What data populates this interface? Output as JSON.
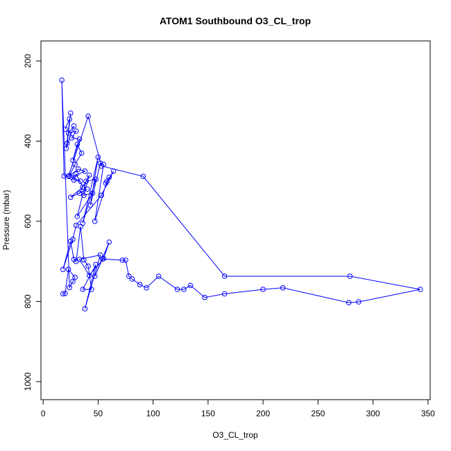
{
  "chart_data": {
    "type": "line",
    "title": "ATOM1 Southbound O3_CL_trop",
    "xlabel": "O3_CL_trop",
    "ylabel": "Pressure (mbar)",
    "xlim": [
      -2,
      352
    ],
    "ylim": [
      1045,
      150
    ],
    "y_reversed": true,
    "x_ticks": [
      0,
      50,
      100,
      150,
      200,
      250,
      300,
      350
    ],
    "y_ticks": [
      200,
      400,
      600,
      800,
      1000
    ],
    "grid": false,
    "legend": "none",
    "color": "#0000ff",
    "marker": "open-circle",
    "series": [
      {
        "x": [
          20,
          24,
          22,
          25,
          21,
          28,
          23,
          30,
          26,
          33,
          27,
          31,
          35,
          29,
          24,
          32,
          38,
          26,
          34,
          28,
          30,
          36,
          25,
          40,
          33,
          42,
          37,
          45,
          31,
          39,
          48,
          36,
          50,
          43,
          52,
          55,
          47,
          58,
          60,
          57,
          64,
          53,
          30,
          27,
          18,
          25,
          28,
          30,
          34,
          37,
          41,
          44,
          36,
          48,
          38,
          52,
          33,
          42,
          55,
          60,
          47,
          54,
          72,
          75,
          78,
          81,
          88,
          94,
          105,
          122,
          128,
          134,
          147,
          165,
          200,
          218,
          278,
          287,
          343,
          279,
          165,
          91,
          53,
          41,
          23,
          19,
          17,
          24,
          27,
          29,
          23,
          20,
          18
        ],
        "y": [
          370,
          345,
          405,
          330,
          418,
          362,
          380,
          375,
          392,
          395,
          448,
          408,
          430,
          458,
          486,
          470,
          475,
          490,
          500,
          497,
          482,
          515,
          540,
          520,
          530,
          485,
          535,
          530,
          588,
          500,
          495,
          605,
          440,
          560,
          455,
          458,
          600,
          500,
          490,
          505,
          475,
          535,
          610,
          645,
          720,
          650,
          695,
          700,
          613,
          696,
          712,
          770,
          770,
          708,
          818,
          684,
          695,
          735,
          693,
          652,
          737,
          694,
          697,
          697,
          737,
          744,
          758,
          766,
          737,
          770,
          770,
          760,
          790,
          781,
          770,
          766,
          803,
          801,
          770,
          737,
          737,
          488,
          462,
          338,
          488,
          487,
          248,
          765,
          750,
          740,
          720,
          780,
          781
        ]
      }
    ]
  }
}
